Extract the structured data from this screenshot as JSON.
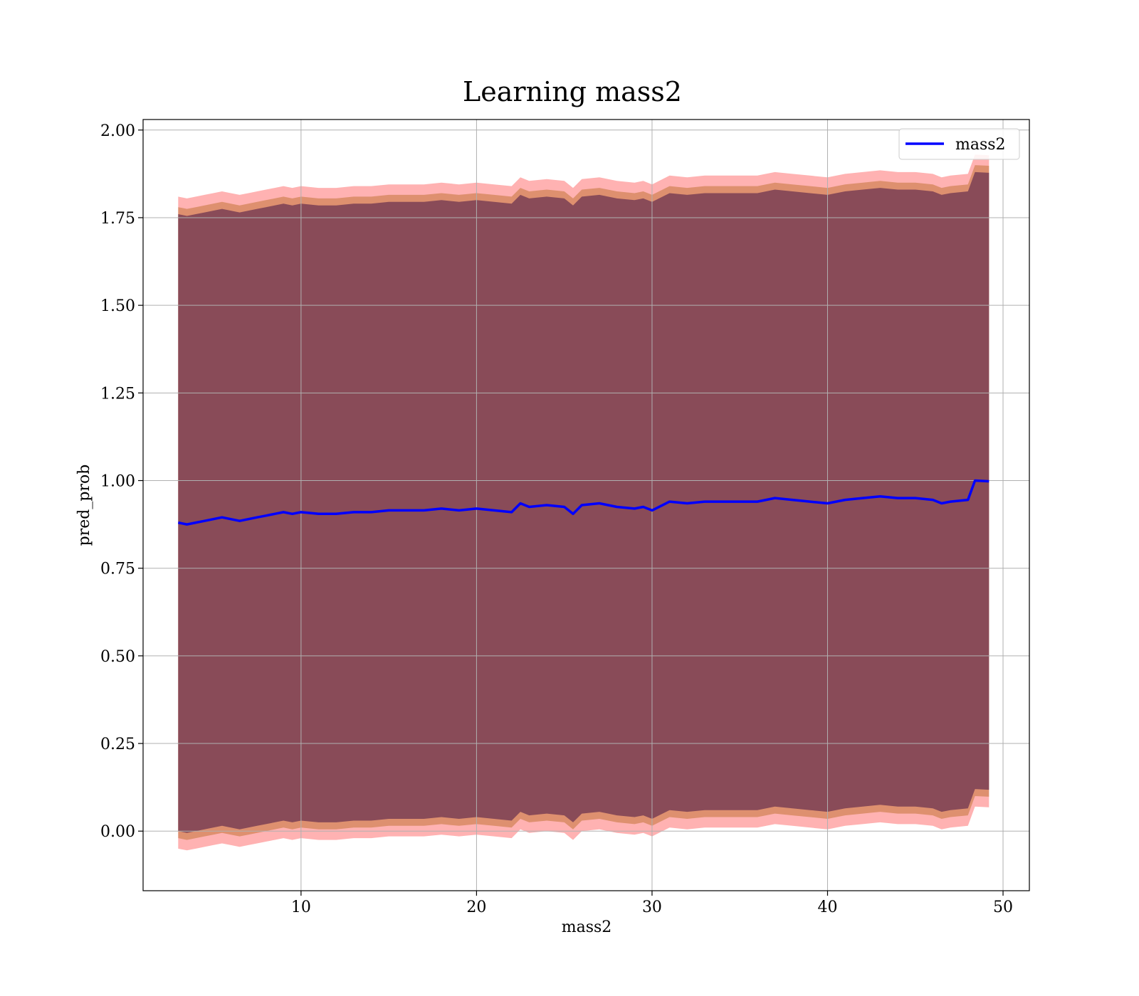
{
  "chart_data": {
    "type": "line",
    "title": "Learning mass2",
    "xlabel": "mass2",
    "ylabel": "pred_prob",
    "xlim": [
      1,
      51.5
    ],
    "ylim": [
      -0.17,
      2.03
    ],
    "xticks": [
      10,
      20,
      30,
      40,
      50
    ],
    "xtick_labels": [
      "10",
      "20",
      "30",
      "40",
      "50"
    ],
    "yticks": [
      0.0,
      0.25,
      0.5,
      0.75,
      1.0,
      1.25,
      1.5,
      1.75,
      2.0
    ],
    "ytick_labels": [
      "0.00",
      "0.25",
      "0.50",
      "0.75",
      "1.00",
      "1.25",
      "1.50",
      "1.75",
      "2.00"
    ],
    "grid": true,
    "legend": {
      "position": "top-right",
      "entries": [
        "mass2"
      ]
    },
    "colors": {
      "line": "#0000ff",
      "band_outer": "#ff0000",
      "band_middle": "#b5651d",
      "band_inner": "#7a3f55",
      "grid": "#b0b0b0"
    },
    "series": [
      {
        "name": "mass2",
        "x": [
          3.0,
          3.5,
          4.0,
          4.5,
          5.0,
          5.5,
          6.0,
          6.5,
          7.0,
          7.5,
          8.0,
          8.5,
          9.0,
          9.5,
          10.0,
          11.0,
          12.0,
          13.0,
          14.0,
          15.0,
          16.0,
          17.0,
          18.0,
          19.0,
          20.0,
          21.0,
          22.0,
          22.5,
          23.0,
          24.0,
          25.0,
          25.5,
          26.0,
          27.0,
          28.0,
          29.0,
          29.5,
          30.0,
          31.0,
          32.0,
          33.0,
          34.0,
          35.0,
          36.0,
          37.0,
          38.0,
          39.0,
          40.0,
          41.0,
          42.0,
          43.0,
          44.0,
          45.0,
          46.0,
          46.5,
          47.0,
          48.0,
          48.4,
          49.2
        ],
        "y": [
          0.88,
          0.875,
          0.88,
          0.885,
          0.89,
          0.895,
          0.89,
          0.885,
          0.89,
          0.895,
          0.9,
          0.905,
          0.91,
          0.905,
          0.91,
          0.905,
          0.905,
          0.91,
          0.91,
          0.915,
          0.915,
          0.915,
          0.92,
          0.915,
          0.92,
          0.915,
          0.91,
          0.935,
          0.925,
          0.93,
          0.925,
          0.905,
          0.93,
          0.935,
          0.925,
          0.92,
          0.925,
          0.915,
          0.94,
          0.935,
          0.94,
          0.94,
          0.94,
          0.94,
          0.95,
          0.945,
          0.94,
          0.935,
          0.945,
          0.95,
          0.955,
          0.95,
          0.95,
          0.945,
          0.935,
          0.94,
          0.945,
          1.0,
          0.998
        ],
        "band_outer_halfwidth": [
          0.93,
          0.93,
          0.93,
          0.93,
          0.93,
          0.93,
          0.93,
          0.93,
          0.93,
          0.93,
          0.93,
          0.93,
          0.93,
          0.93,
          0.93,
          0.93,
          0.93,
          0.93,
          0.93,
          0.93,
          0.93,
          0.93,
          0.93,
          0.93,
          0.93,
          0.93,
          0.93,
          0.93,
          0.93,
          0.93,
          0.93,
          0.93,
          0.93,
          0.93,
          0.93,
          0.93,
          0.93,
          0.93,
          0.93,
          0.93,
          0.93,
          0.93,
          0.93,
          0.93,
          0.93,
          0.93,
          0.93,
          0.93,
          0.93,
          0.93,
          0.93,
          0.93,
          0.93,
          0.93,
          0.93,
          0.93,
          0.93,
          0.93,
          0.93
        ],
        "band_middle_halfwidth": [
          0.9,
          0.9,
          0.9,
          0.9,
          0.9,
          0.9,
          0.9,
          0.9,
          0.9,
          0.9,
          0.9,
          0.9,
          0.9,
          0.9,
          0.9,
          0.9,
          0.9,
          0.9,
          0.9,
          0.9,
          0.9,
          0.9,
          0.9,
          0.9,
          0.9,
          0.9,
          0.9,
          0.9,
          0.9,
          0.9,
          0.9,
          0.9,
          0.9,
          0.9,
          0.9,
          0.9,
          0.9,
          0.9,
          0.9,
          0.9,
          0.9,
          0.9,
          0.9,
          0.9,
          0.9,
          0.9,
          0.9,
          0.9,
          0.9,
          0.9,
          0.9,
          0.9,
          0.9,
          0.9,
          0.9,
          0.9,
          0.9,
          0.9,
          0.9
        ],
        "band_inner_halfwidth": [
          0.88,
          0.88,
          0.88,
          0.88,
          0.88,
          0.88,
          0.88,
          0.88,
          0.88,
          0.88,
          0.88,
          0.88,
          0.88,
          0.88,
          0.88,
          0.88,
          0.88,
          0.88,
          0.88,
          0.88,
          0.88,
          0.88,
          0.88,
          0.88,
          0.88,
          0.88,
          0.88,
          0.88,
          0.88,
          0.88,
          0.88,
          0.88,
          0.88,
          0.88,
          0.88,
          0.88,
          0.88,
          0.88,
          0.88,
          0.88,
          0.88,
          0.88,
          0.88,
          0.88,
          0.88,
          0.88,
          0.88,
          0.88,
          0.88,
          0.88,
          0.88,
          0.88,
          0.88,
          0.88,
          0.88,
          0.88,
          0.88,
          0.88,
          0.88
        ]
      }
    ]
  }
}
